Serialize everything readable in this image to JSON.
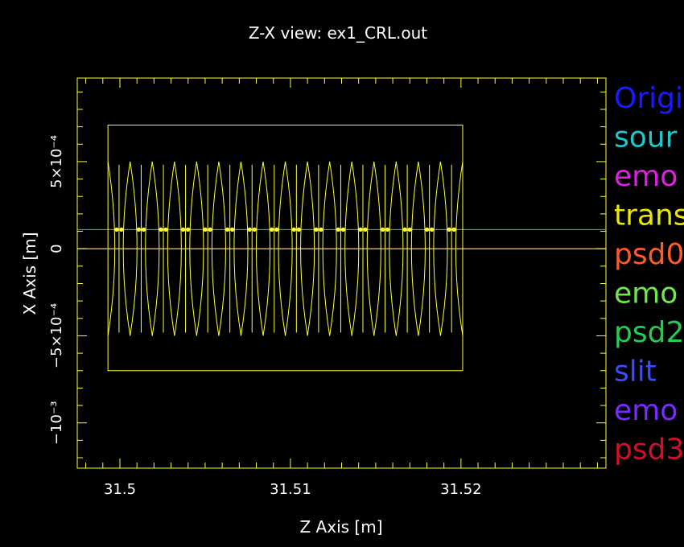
{
  "chart_data": {
    "type": "line",
    "title": "Z-X view: ex1_CRL.out",
    "xlabel": "Z Axis [m]",
    "ylabel": "X Axis [m]",
    "xlim": [
      31.4975,
      31.5285
    ],
    "ylim": [
      -0.00126,
      0.00098
    ],
    "x_ticks": [
      {
        "value": 31.5,
        "label": "31.5"
      },
      {
        "value": 31.51,
        "label": "31.51"
      },
      {
        "value": 31.52,
        "label": "31.52"
      }
    ],
    "y_ticks": [
      {
        "value": 0.0005,
        "label": "5×10⁻⁴"
      },
      {
        "value": 0,
        "label": "0"
      },
      {
        "value": -0.0005,
        "label": "−5×10⁻⁴"
      },
      {
        "value": -0.001,
        "label": "−10⁻³"
      }
    ],
    "grid": false,
    "legend_position": "right, outside plot (clipped by window edge)",
    "legend": [
      {
        "label": "Origi",
        "color": "#1a1aff"
      },
      {
        "label": "sour",
        "color": "#1fc8c8"
      },
      {
        "label": "emo",
        "color": "#e020e0"
      },
      {
        "label": "trans",
        "color": "#e8e800"
      },
      {
        "label": "psd0",
        "color": "#ff5a2a"
      },
      {
        "label": "emo",
        "color": "#6ee84a"
      },
      {
        "label": "psd2",
        "color": "#22cc55"
      },
      {
        "label": "slit",
        "color": "#3a4cff"
      },
      {
        "label": "emo",
        "color": "#7a2aff"
      },
      {
        "label": "psd3",
        "color": "#d0102a"
      }
    ],
    "series": [
      {
        "color": "#ff2020",
        "x": [
          31.4975,
          31.5285
        ],
        "y": [
          0,
          0
        ]
      },
      {
        "color": "#33dd33",
        "x": [
          31.4975,
          31.5285
        ],
        "y": [
          0.00011,
          0.00011
        ]
      },
      {
        "color": "#ffff33",
        "x": [
          31.4975,
          31.5285
        ],
        "y": [
          0,
          0
        ]
      }
    ],
    "transmission_box": {
      "color": "#ffff33",
      "x": [
        31.4993,
        31.5201
      ],
      "y": [
        -0.0007,
        0.00071
      ]
    },
    "lens_stack": {
      "color": "#ffff33",
      "count": 16,
      "z_start": 31.4993,
      "z_end": 31.5201,
      "half_aperture": 0.0005,
      "dot_x": 0.00011
    }
  },
  "colors": {
    "background": "#000000",
    "axes": "#ffff33",
    "text": "#ffffff"
  }
}
